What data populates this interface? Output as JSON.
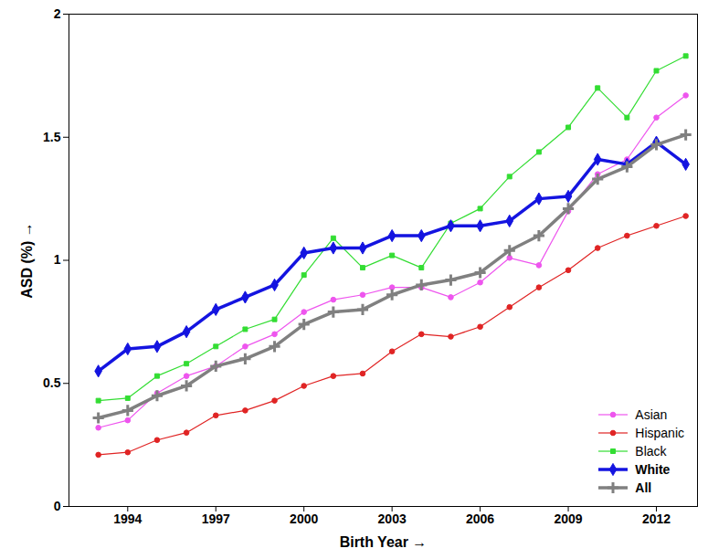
{
  "chart_data": {
    "type": "line",
    "x_label": "Birth Year",
    "y_label": "ASD (%)",
    "x": [
      1993,
      1994,
      1995,
      1996,
      1997,
      1998,
      1999,
      2000,
      2001,
      2002,
      2003,
      2004,
      2005,
      2006,
      2007,
      2008,
      2009,
      2010,
      2011,
      2012,
      2013
    ],
    "series": [
      {
        "name": "Asian",
        "color": "#ee55ee",
        "marker": "circle",
        "values": [
          0.32,
          0.35,
          0.46,
          0.53,
          0.57,
          0.65,
          0.7,
          0.79,
          0.84,
          0.86,
          0.89,
          0.89,
          0.85,
          0.91,
          1.01,
          0.98,
          1.2,
          1.35,
          1.41,
          1.58,
          1.67
        ]
      },
      {
        "name": "Hispanic",
        "color": "#e02424",
        "marker": "circle",
        "values": [
          0.21,
          0.22,
          0.27,
          0.3,
          0.37,
          0.39,
          0.43,
          0.49,
          0.53,
          0.54,
          0.63,
          0.7,
          0.69,
          0.73,
          0.81,
          0.89,
          0.96,
          1.05,
          1.1,
          1.14,
          1.18
        ]
      },
      {
        "name": "Black",
        "color": "#33dd33",
        "marker": "square",
        "values": [
          0.43,
          0.44,
          0.53,
          0.58,
          0.65,
          0.72,
          0.76,
          0.94,
          1.09,
          0.97,
          1.02,
          0.97,
          1.15,
          1.21,
          1.34,
          1.44,
          1.54,
          1.7,
          1.58,
          1.77,
          1.83
        ]
      },
      {
        "name": "White",
        "color": "#1414e0",
        "marker": "diamond",
        "values": [
          0.55,
          0.64,
          0.65,
          0.71,
          0.8,
          0.85,
          0.9,
          1.03,
          1.05,
          1.05,
          1.1,
          1.1,
          1.14,
          1.14,
          1.16,
          1.25,
          1.26,
          1.41,
          1.39,
          1.48,
          1.39
        ]
      },
      {
        "name": "All",
        "color": "#808080",
        "marker": "plus",
        "values": [
          0.36,
          0.39,
          0.45,
          0.49,
          0.57,
          0.6,
          0.65,
          0.74,
          0.79,
          0.8,
          0.86,
          0.9,
          0.92,
          0.95,
          1.04,
          1.1,
          1.21,
          1.33,
          1.38,
          1.47,
          1.51
        ]
      }
    ],
    "xlim": [
      1992,
      2013.4
    ],
    "xticks": [
      1994,
      1997,
      2000,
      2003,
      2006,
      2009,
      2012
    ],
    "ylim": [
      0,
      2
    ],
    "yticks": [
      0,
      0.5,
      1,
      1.5,
      2
    ],
    "grid": false,
    "legend": "bottom-right"
  }
}
